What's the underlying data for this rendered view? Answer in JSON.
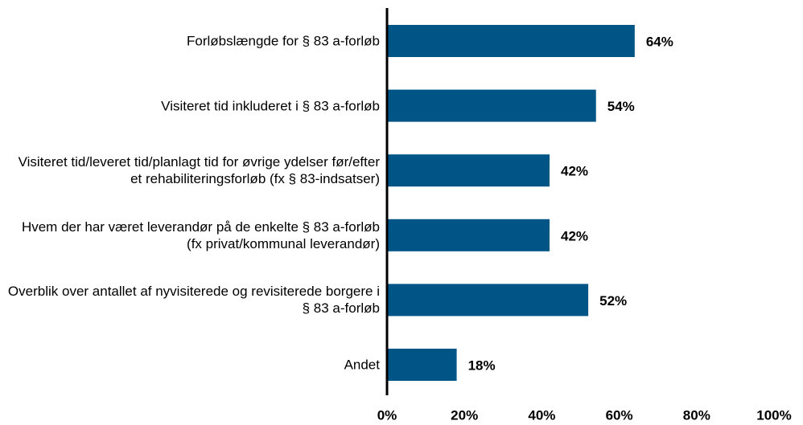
{
  "chart_data": {
    "type": "bar",
    "orientation": "horizontal",
    "categories": [
      "Forløbslængde for § 83 a-forløb",
      "Visiteret tid inkluderet i § 83 a-forløb",
      "Visiteret tid/leveret tid/planlagt tid for øvrige ydelser før/efter et rehabiliteringsforløb (fx § 83-indsatser)",
      "Hvem der har været leverandør på de enkelte § 83 a-forløb (fx privat/kommunal leverandør)",
      "Overblik over antallet af nyvisiterede og revisiterede borgere i § 83 a-forløb",
      "Andet"
    ],
    "values": [
      64,
      54,
      42,
      42,
      52,
      18
    ],
    "value_labels": [
      "64%",
      "54%",
      "42%",
      "42%",
      "52%",
      "18%"
    ],
    "color": "#005587",
    "xlim": [
      0,
      100
    ],
    "xticks": [
      {
        "value": 0,
        "label": "0%"
      },
      {
        "value": 20,
        "label": "20%"
      },
      {
        "value": 40,
        "label": "40%"
      },
      {
        "value": 60,
        "label": "60%"
      },
      {
        "value": 80,
        "label": "80%"
      },
      {
        "value": 100,
        "label": "100%"
      }
    ],
    "grid": false
  }
}
